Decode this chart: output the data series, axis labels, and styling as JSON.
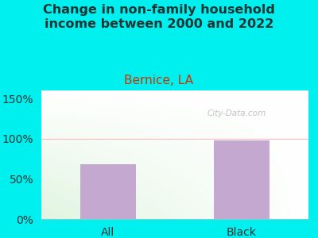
{
  "title": "Change in non-family household\nincome between 2000 and 2022",
  "subtitle": "Bernice, LA",
  "categories": [
    "All",
    "Black"
  ],
  "values": [
    68,
    98
  ],
  "bar_color": "#c4a8d0",
  "title_color": "#1a3333",
  "subtitle_color": "#cc3300",
  "yticks": [
    0,
    50,
    100,
    150
  ],
  "ytick_labels": [
    "0%",
    "50%",
    "100%",
    "150%"
  ],
  "ylim": [
    0,
    160
  ],
  "background_outer": "#00f0f0",
  "watermark": "City-Data.com",
  "title_fontsize": 11.5,
  "subtitle_fontsize": 11,
  "tick_fontsize": 10,
  "bar_width": 0.42
}
